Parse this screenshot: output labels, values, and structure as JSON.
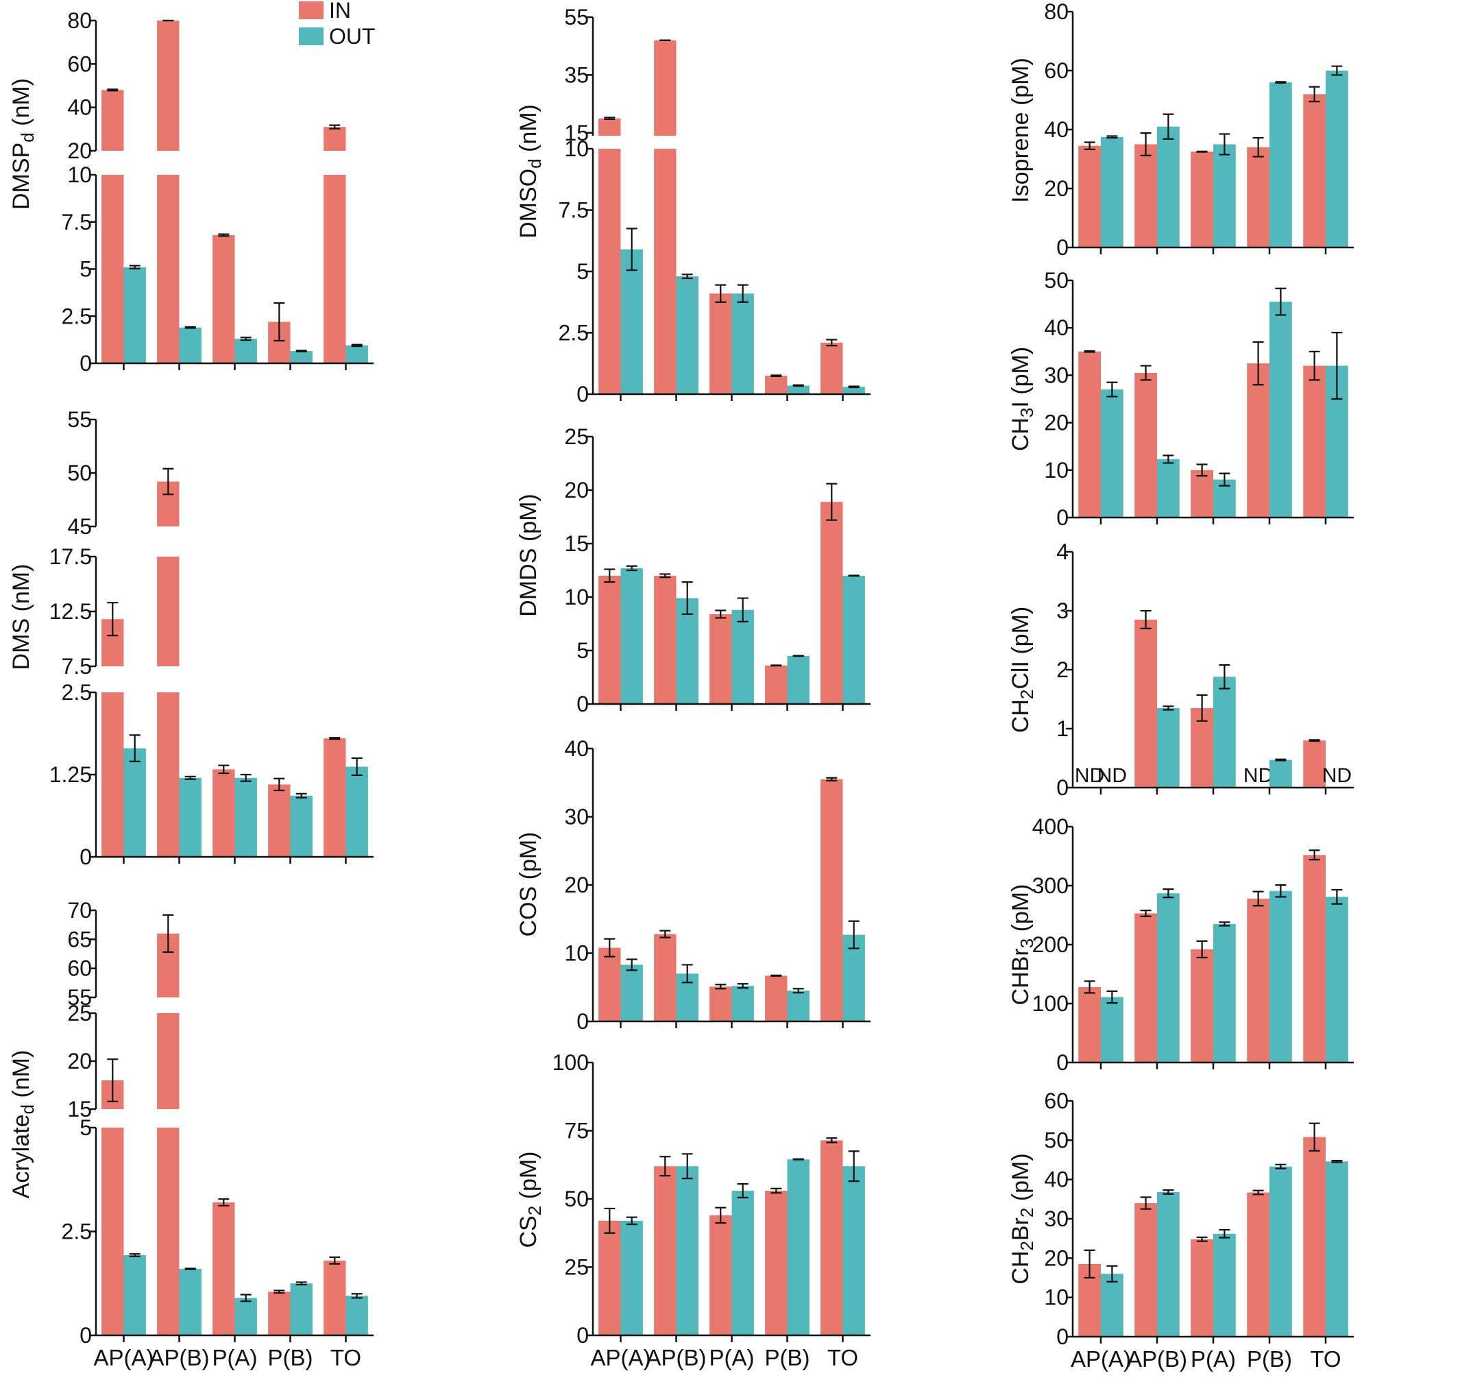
{
  "colors": {
    "in": "#e8776e",
    "out": "#53b8bb",
    "axis": "#111111",
    "error": "#111111"
  },
  "legend": [
    {
      "key": "in",
      "label": "IN"
    },
    {
      "key": "out",
      "label": "OUT"
    }
  ],
  "categories": [
    "AP(A)",
    "AP(B)",
    "P(A)",
    "P(B)",
    "TO"
  ],
  "chart_data": [
    {
      "id": "dmsp",
      "type": "bar",
      "ylabel": "DMSPd (nM)",
      "ylabel_base": "DMSP",
      "ylabel_sub": "d",
      "ylabel_tail": " (nM)",
      "series": [
        {
          "name": "IN",
          "values": [
            48,
            80,
            6.8,
            2.2,
            31
          ],
          "errors": [
            0.3,
            0,
            0.05,
            1.0,
            0.8
          ]
        },
        {
          "name": "OUT",
          "values": [
            5.1,
            1.9,
            1.3,
            0.65,
            0.95
          ],
          "errors": [
            0.08,
            0.03,
            0.07,
            0.03,
            0.04
          ]
        }
      ],
      "axis_segments": [
        {
          "range": [
            0,
            10
          ],
          "ticks": [
            0,
            2.5,
            5,
            7.5,
            10
          ],
          "tick_labels": [
            "0",
            "2.5",
            "5",
            "7.5",
            "10"
          ]
        },
        {
          "range": [
            20,
            80
          ],
          "ticks": [
            20,
            40,
            60,
            80
          ],
          "tick_labels": [
            "20",
            "40",
            "60",
            "80"
          ]
        }
      ]
    },
    {
      "id": "dms",
      "type": "bar",
      "ylabel": "DMS (nM)",
      "ylabel_base": "DMS (nM)",
      "series": [
        {
          "name": "IN",
          "values": [
            11.8,
            49.2,
            1.33,
            1.1,
            1.8
          ],
          "errors": [
            1.5,
            1.2,
            0.06,
            0.09,
            0.01
          ]
        },
        {
          "name": "OUT",
          "values": [
            1.65,
            1.2,
            1.2,
            0.93,
            1.37
          ],
          "errors": [
            0.2,
            0.02,
            0.05,
            0.03,
            0.13
          ]
        }
      ],
      "axis_segments": [
        {
          "range": [
            0,
            2.5
          ],
          "ticks": [
            0,
            1.25,
            2.5
          ],
          "tick_labels": [
            "0",
            "1.25",
            "2.5"
          ]
        },
        {
          "range": [
            7.5,
            17.5
          ],
          "ticks": [
            7.5,
            12.5,
            17.5
          ],
          "tick_labels": [
            "7.5",
            "12.5",
            "17.5"
          ]
        },
        {
          "range": [
            45,
            55
          ],
          "ticks": [
            45,
            50,
            55
          ],
          "tick_labels": [
            "45",
            "50",
            "55"
          ]
        }
      ]
    },
    {
      "id": "acrylate",
      "type": "bar",
      "ylabel": "Acrylated (nM)",
      "ylabel_base": "Acrylate",
      "ylabel_sub": "d",
      "ylabel_tail": " (nM)",
      "series": [
        {
          "name": "IN",
          "values": [
            18,
            66,
            3.2,
            1.05,
            1.8
          ],
          "errors": [
            2.2,
            3.2,
            0.08,
            0.03,
            0.08
          ]
        },
        {
          "name": "OUT",
          "values": [
            1.93,
            1.6,
            0.9,
            1.25,
            0.95
          ],
          "errors": [
            0.03,
            0.01,
            0.08,
            0.03,
            0.05
          ]
        }
      ],
      "axis_segments": [
        {
          "range": [
            0,
            5
          ],
          "ticks": [
            0,
            2.5,
            5
          ],
          "tick_labels": [
            "0",
            "2.5",
            "5"
          ]
        },
        {
          "range": [
            15,
            25
          ],
          "ticks": [
            15,
            20,
            25
          ],
          "tick_labels": [
            "15",
            "20",
            "25"
          ]
        },
        {
          "range": [
            55,
            70
          ],
          "ticks": [
            55,
            60,
            65,
            70
          ],
          "tick_labels": [
            "55",
            "60",
            "65",
            "70"
          ]
        }
      ]
    },
    {
      "id": "dmso",
      "type": "bar",
      "ylabel": "DMSOd (nM)",
      "ylabel_base": "DMSO",
      "ylabel_sub": "d",
      "ylabel_tail": " (nM)",
      "series": [
        {
          "name": "IN",
          "values": [
            20,
            47,
            4.1,
            0.75,
            2.1
          ],
          "errors": [
            0.3,
            0,
            0.35,
            0.02,
            0.12
          ]
        },
        {
          "name": "OUT",
          "values": [
            5.9,
            4.8,
            4.1,
            0.35,
            0.3
          ],
          "errors": [
            0.85,
            0.08,
            0.35,
            0.02,
            0.02
          ]
        }
      ],
      "axis_segments": [
        {
          "range": [
            0,
            10
          ],
          "ticks": [
            0,
            2.5,
            5,
            7.5,
            10
          ],
          "tick_labels": [
            "0",
            "2.5",
            "5",
            "7.5",
            "10"
          ]
        },
        {
          "range": [
            14,
            55
          ],
          "ticks": [
            15,
            35,
            55
          ],
          "tick_labels": [
            "15",
            "35",
            "55"
          ]
        }
      ]
    },
    {
      "id": "dmds",
      "type": "bar",
      "ylabel": "DMDS (pM)",
      "ylabel_base": "DMDS (pM)",
      "series": [
        {
          "name": "IN",
          "values": [
            12,
            12,
            8.4,
            3.6,
            18.9
          ],
          "errors": [
            0.6,
            0.15,
            0.35,
            0.02,
            1.7
          ]
        },
        {
          "name": "OUT",
          "values": [
            12.7,
            9.9,
            8.8,
            4.5,
            12
          ],
          "errors": [
            0.2,
            1.5,
            1.1,
            0.02,
            0.02
          ]
        }
      ],
      "axis_segments": [
        {
          "range": [
            0,
            25
          ],
          "ticks": [
            0,
            5,
            10,
            15,
            20,
            25
          ],
          "tick_labels": [
            "0",
            "5",
            "10",
            "15",
            "20",
            "25"
          ]
        }
      ]
    },
    {
      "id": "cos",
      "type": "bar",
      "ylabel": "COS (pM)",
      "ylabel_base": "COS (pM)",
      "series": [
        {
          "name": "IN",
          "values": [
            10.8,
            12.8,
            5.1,
            6.7,
            35.5
          ],
          "errors": [
            1.3,
            0.5,
            0.3,
            0.05,
            0.2
          ]
        },
        {
          "name": "OUT",
          "values": [
            8.3,
            7,
            5.2,
            4.5,
            12.7
          ],
          "errors": [
            0.8,
            1.3,
            0.3,
            0.3,
            2
          ]
        }
      ],
      "axis_segments": [
        {
          "range": [
            0,
            40
          ],
          "ticks": [
            0,
            10,
            20,
            30,
            40
          ],
          "tick_labels": [
            "0",
            "10",
            "20",
            "30",
            "40"
          ]
        }
      ]
    },
    {
      "id": "cs2",
      "type": "bar",
      "ylabel": "CS2 (pM)",
      "ylabel_base": "CS",
      "ylabel_sub": "2",
      "ylabel_tail": " (pM)",
      "series": [
        {
          "name": "IN",
          "values": [
            42,
            62,
            44,
            53,
            71.5
          ],
          "errors": [
            4.5,
            3.5,
            2.8,
            0.8,
            0.8
          ]
        },
        {
          "name": "OUT",
          "values": [
            42,
            62,
            53,
            64.5,
            62
          ],
          "errors": [
            1.3,
            4.5,
            2.5,
            0.1,
            5.5
          ]
        }
      ],
      "axis_segments": [
        {
          "range": [
            0,
            100
          ],
          "ticks": [
            0,
            25,
            50,
            75,
            100
          ],
          "tick_labels": [
            "0",
            "25",
            "50",
            "75",
            "100"
          ]
        }
      ]
    },
    {
      "id": "isoprene",
      "type": "bar",
      "ylabel": "Isoprene (pM)",
      "ylabel_base": "Isoprene (pM)",
      "series": [
        {
          "name": "IN",
          "values": [
            34.5,
            35,
            32.5,
            34,
            52
          ],
          "errors": [
            1.2,
            3.8,
            0.1,
            3.2,
            2.5
          ]
        },
        {
          "name": "OUT",
          "values": [
            37.5,
            41,
            35,
            56,
            60
          ],
          "errors": [
            0.3,
            4.2,
            3.5,
            0.2,
            1.5
          ]
        }
      ],
      "axis_segments": [
        {
          "range": [
            0,
            80
          ],
          "ticks": [
            0,
            20,
            40,
            60,
            80
          ],
          "tick_labels": [
            "0",
            "20",
            "40",
            "60",
            "80"
          ]
        }
      ]
    },
    {
      "id": "ch3i",
      "type": "bar",
      "ylabel": "CH3I (pM)",
      "ylabel_base": "CH",
      "ylabel_sub": "3",
      "ylabel_tail": "I (pM)",
      "series": [
        {
          "name": "IN",
          "values": [
            35,
            30.5,
            10,
            32.5,
            32
          ],
          "errors": [
            0.1,
            1.5,
            1.2,
            4.5,
            3
          ]
        },
        {
          "name": "OUT",
          "values": [
            27,
            12.3,
            8,
            45.5,
            32
          ],
          "errors": [
            1.5,
            0.8,
            1.3,
            2.8,
            7
          ]
        }
      ],
      "axis_segments": [
        {
          "range": [
            0,
            50
          ],
          "ticks": [
            0,
            10,
            20,
            30,
            40,
            50
          ],
          "tick_labels": [
            "0",
            "10",
            "20",
            "30",
            "40",
            "50"
          ]
        }
      ]
    },
    {
      "id": "ch2cli",
      "type": "bar",
      "ylabel": "CH2ClI (pM)",
      "ylabel_base": "CH",
      "ylabel_sub": "2",
      "ylabel_tail": "ClI (pM)",
      "series": [
        {
          "name": "IN",
          "values": [
            null,
            2.85,
            1.35,
            null,
            0.8
          ],
          "errors": [
            0,
            0.15,
            0.22,
            0,
            0.01
          ]
        },
        {
          "name": "OUT",
          "values": [
            null,
            1.35,
            1.88,
            0.47,
            null
          ],
          "errors": [
            0,
            0.03,
            0.2,
            0.01,
            0
          ]
        }
      ],
      "nd_label": "ND",
      "axis_segments": [
        {
          "range": [
            0,
            4
          ],
          "ticks": [
            0,
            1,
            2,
            3,
            4
          ],
          "tick_labels": [
            "0",
            "1",
            "2",
            "3",
            "4"
          ]
        }
      ]
    },
    {
      "id": "chbr3",
      "type": "bar",
      "ylabel": "CHBr3 (pM)",
      "ylabel_base": "CHBr",
      "ylabel_sub": "3",
      "ylabel_tail": " (pM)",
      "series": [
        {
          "name": "IN",
          "values": [
            128,
            253,
            192,
            278,
            352
          ],
          "errors": [
            10,
            5,
            14,
            12,
            8
          ]
        },
        {
          "name": "OUT",
          "values": [
            111,
            287,
            235,
            291,
            281
          ],
          "errors": [
            10,
            7,
            3,
            10,
            12
          ]
        }
      ],
      "axis_segments": [
        {
          "range": [
            0,
            400
          ],
          "ticks": [
            0,
            100,
            200,
            300,
            400
          ],
          "tick_labels": [
            "0",
            "100",
            "200",
            "300",
            "400"
          ]
        }
      ]
    },
    {
      "id": "ch2br2",
      "type": "bar",
      "ylabel": "CH2Br2 (pM)",
      "ylabel_base": "CH",
      "ylabel_sub": "2",
      "ylabel_tail": "Br",
      "ylabel_sub2": "2",
      "ylabel_tail2": " (pM)",
      "series": [
        {
          "name": "IN",
          "values": [
            18.5,
            34,
            24.8,
            36.7,
            50.8
          ],
          "errors": [
            3.5,
            1.5,
            0.5,
            0.5,
            3.5
          ]
        },
        {
          "name": "OUT",
          "values": [
            16,
            36.8,
            26.2,
            43.3,
            44.6
          ],
          "errors": [
            2,
            0.5,
            1,
            0.5,
            0.2
          ]
        }
      ],
      "axis_segments": [
        {
          "range": [
            0,
            60
          ],
          "ticks": [
            0,
            10,
            20,
            30,
            40,
            50,
            60
          ],
          "tick_labels": [
            "0",
            "10",
            "20",
            "30",
            "40",
            "50",
            "60"
          ]
        }
      ]
    }
  ]
}
